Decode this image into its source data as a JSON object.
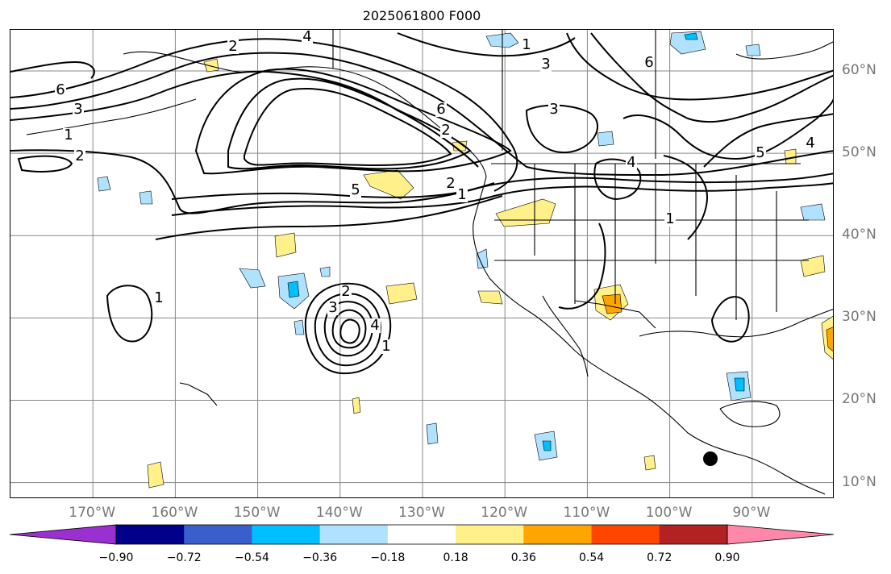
{
  "title": "2025061800 F000",
  "map": {
    "lon_labels": [
      {
        "text": "170°W",
        "lon": -170
      },
      {
        "text": "160°W",
        "lon": -160
      },
      {
        "text": "150°W",
        "lon": -150
      },
      {
        "text": "140°W",
        "lon": -140
      },
      {
        "text": "130°W",
        "lon": -130
      },
      {
        "text": "120°W",
        "lon": -120
      },
      {
        "text": "110°W",
        "lon": -110
      },
      {
        "text": "100°W",
        "lon": -100
      },
      {
        "text": "90°W",
        "lon": -90
      }
    ],
    "lat_labels": [
      {
        "text": "60°N",
        "lat": 60
      },
      {
        "text": "50°N",
        "lat": 50
      },
      {
        "text": "40°N",
        "lat": 40
      },
      {
        "text": "30°N",
        "lat": 30
      },
      {
        "text": "20°N",
        "lat": 20
      },
      {
        "text": "10°N",
        "lat": 10
      }
    ],
    "extent": {
      "lon_min": -180,
      "lon_max": -80,
      "lat_min": 8,
      "lat_max": 65
    },
    "contour_labels": [
      "4",
      "2",
      "6",
      "3",
      "1",
      "2",
      "5",
      "2",
      "1",
      "6",
      "3",
      "6",
      "4",
      "5",
      "4",
      "1",
      "1",
      "2",
      "3",
      "4",
      "1",
      "3",
      "1",
      "2"
    ]
  },
  "colorbar": {
    "colors": [
      "#9b30d0",
      "#00008b",
      "#3a5fcd",
      "#00bfff",
      "#b0e2ff",
      "#ffffff",
      "#fff08a",
      "#ffa500",
      "#ff4500",
      "#b22222",
      "#ff88aa"
    ],
    "tick_labels": [
      "−0.90",
      "−0.72",
      "−0.54",
      "−0.36",
      "−0.18",
      "0.18",
      "0.36",
      "0.54",
      "0.72",
      "0.90"
    ]
  },
  "colors": {
    "land": "#000000",
    "grid": "#888888",
    "contour": "#000000",
    "marker": "#000000"
  }
}
